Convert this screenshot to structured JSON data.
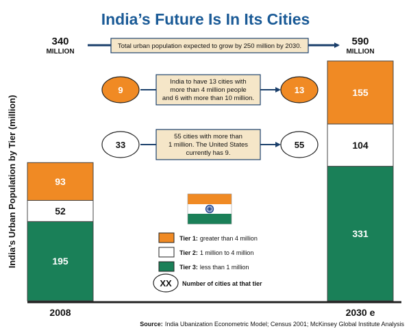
{
  "chart_data": {
    "type": "bar",
    "stacked": true,
    "title": "India’s Future Is In Its Cities",
    "ylabel": "India’s Urban Population by Tier (million)",
    "categories": [
      "2008",
      "2030 e"
    ],
    "totals": [
      340,
      590
    ],
    "total_unit": "MILLION",
    "series": [
      {
        "name": "Tier 3",
        "values": [
          195,
          331
        ],
        "color": "#1a8058",
        "label_color": "#ffffff"
      },
      {
        "name": "Tier 2",
        "values": [
          52,
          104
        ],
        "color": "#ffffff",
        "label_color": "#111111"
      },
      {
        "name": "Tier 1",
        "values": [
          93,
          155
        ],
        "color": "#f08a24",
        "label_color": "#ffffff"
      }
    ],
    "annotations": {
      "growth_note": "Total urban population expected to grow by 250 million by 2030.",
      "tier1_note_lines": [
        "India to have 13 cities with",
        "more than 4 million people",
        "and 6 with more than 10 million."
      ],
      "tier2_note_lines": [
        "55 cities with more than",
        "1 million. The United States",
        "currently has 9."
      ],
      "tier1_cities": [
        "9",
        "13"
      ],
      "tier2_cities": [
        "33",
        "55"
      ]
    },
    "legend": {
      "items": [
        {
          "key": "Tier 1:",
          "text": "greater than 4 million",
          "color": "#f08a24"
        },
        {
          "key": "Tier 2:",
          "text": "1 million to 4 million",
          "color": "#ffffff"
        },
        {
          "key": "Tier 3:",
          "text": "less than 1 million",
          "color": "#1a8058"
        }
      ],
      "circle_symbol": "XX",
      "circle_text": "Number of cities at that tier"
    },
    "source_label": "Source:",
    "source_text": "India Ubanization Econometric Model; Census 2001; McKinsey Global Institute Analysis"
  },
  "flag": {
    "saffron": "#f08a24",
    "white": "#ffffff",
    "green": "#1a8058",
    "chakra": "#1a3f8c",
    "icon": "india-flag-icon"
  }
}
